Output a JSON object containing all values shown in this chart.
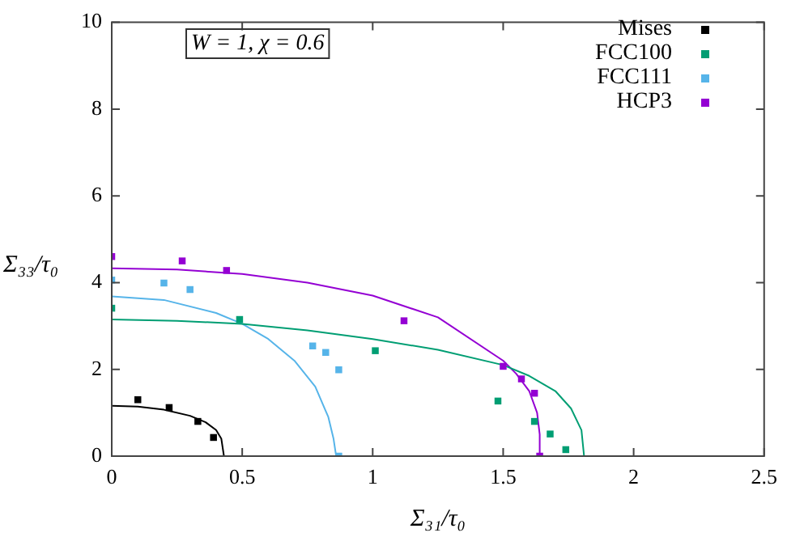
{
  "chart_data": {
    "type": "scatter",
    "xlabel": "Σ₃₁/τ₀",
    "ylabel": "Σ₃₃/τ₀",
    "annotations": [
      "W = 1, χ = 0.6"
    ],
    "xlim": [
      0,
      2.5
    ],
    "xticks": [
      0,
      0.5,
      1,
      1.5,
      2,
      2.5
    ],
    "ylim": [
      0,
      10
    ],
    "yticks": [
      0,
      2,
      4,
      6,
      8,
      10
    ],
    "grid": false,
    "legend": "top right",
    "marker": "square",
    "series": [
      {
        "name": "Mises",
        "color": "#000000",
        "x": [
          0.1,
          0.22,
          0.33,
          0.39
        ],
        "values": [
          1.3,
          1.12,
          0.8,
          0.43
        ]
      },
      {
        "name": "FCC100",
        "color": "#009e73",
        "x": [
          0,
          0.49,
          1.01,
          1.48,
          1.62,
          1.68,
          1.74
        ],
        "values": [
          3.41,
          3.15,
          2.43,
          1.27,
          0.8,
          0.51,
          0.15
        ]
      },
      {
        "name": "FCC111",
        "color": "#56b4e9",
        "x": [
          0,
          0.2,
          0.3,
          0.77,
          0.82,
          0.87,
          0.87
        ],
        "values": [
          4.06,
          3.99,
          3.84,
          2.54,
          2.39,
          1.99,
          0
        ]
      },
      {
        "name": "HCP3",
        "color": "#9400d3",
        "x": [
          0,
          0.27,
          0.44,
          1.12,
          1.5,
          1.57,
          1.62,
          1.64
        ],
        "values": [
          4.6,
          4.5,
          4.28,
          3.12,
          2.07,
          1.78,
          1.45,
          0
        ]
      },
      {
        "type": "line",
        "marker": "none",
        "color": "#000000",
        "x": [
          0,
          0.1,
          0.2,
          0.3,
          0.36,
          0.4,
          0.42,
          0.43
        ],
        "values": [
          1.16,
          1.14,
          1.07,
          0.93,
          0.78,
          0.6,
          0.4,
          0
        ]
      },
      {
        "type": "line",
        "marker": "none",
        "color": "#009e73",
        "x": [
          0,
          0.25,
          0.5,
          0.75,
          1.0,
          1.25,
          1.5,
          1.6,
          1.7,
          1.76,
          1.8,
          1.81
        ],
        "values": [
          3.15,
          3.12,
          3.05,
          2.9,
          2.7,
          2.45,
          2.1,
          1.85,
          1.5,
          1.1,
          0.6,
          0
        ]
      },
      {
        "type": "line",
        "marker": "none",
        "color": "#56b4e9",
        "x": [
          0,
          0.2,
          0.4,
          0.5,
          0.6,
          0.7,
          0.78,
          0.83,
          0.85,
          0.86
        ],
        "values": [
          3.68,
          3.6,
          3.3,
          3.05,
          2.7,
          2.2,
          1.6,
          0.9,
          0.4,
          0
        ]
      },
      {
        "type": "line",
        "marker": "none",
        "color": "#9400d3",
        "x": [
          0,
          0.25,
          0.5,
          0.75,
          1.0,
          1.25,
          1.5,
          1.55,
          1.6,
          1.63,
          1.64,
          1.64
        ],
        "values": [
          4.33,
          4.3,
          4.2,
          4.0,
          3.7,
          3.2,
          2.2,
          1.9,
          1.5,
          1.0,
          0.5,
          0
        ]
      }
    ]
  }
}
